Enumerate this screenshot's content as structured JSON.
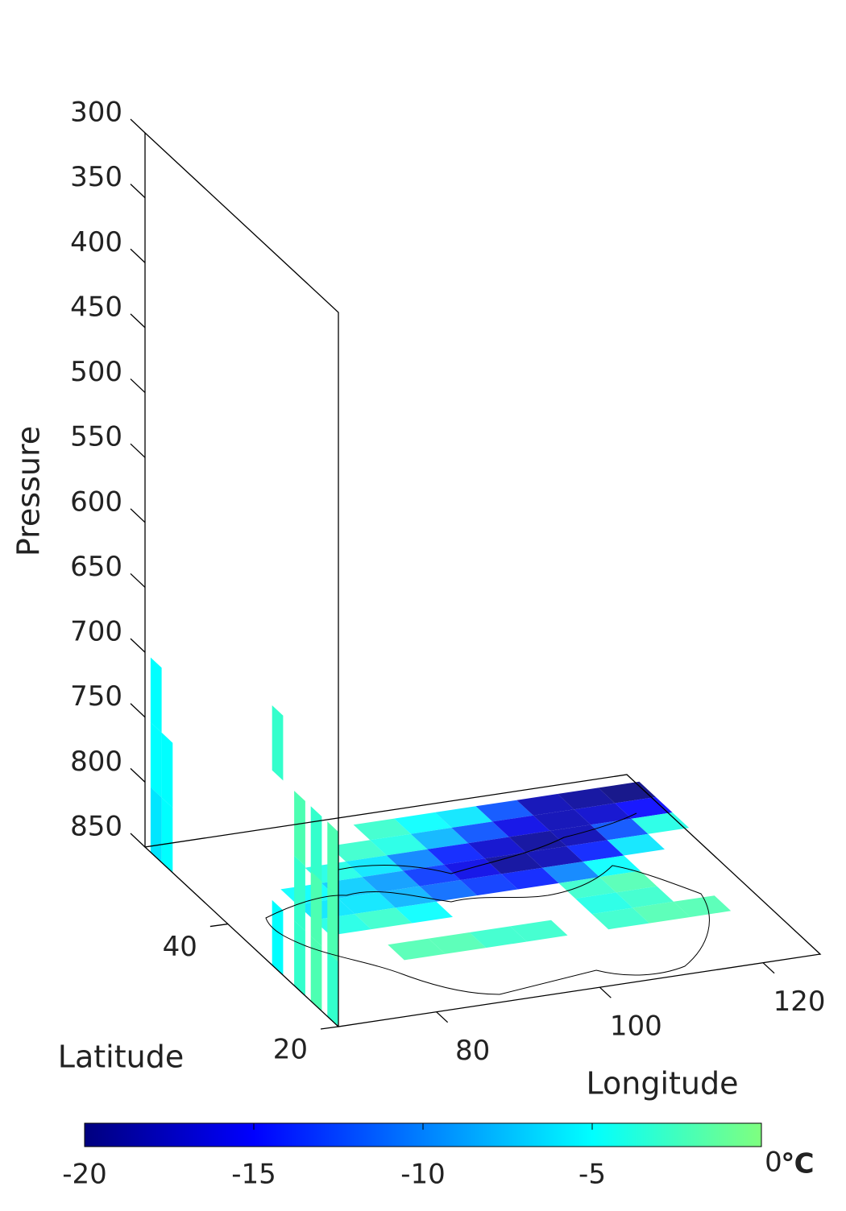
{
  "chart_data": {
    "type": "heatmap3d",
    "xlabel": "Longitude",
    "ylabel": "Latitude",
    "zlabel": "Pressure",
    "xlim": [
      68,
      127
    ],
    "ylim": [
      20,
      55
    ],
    "zlim": [
      300,
      850
    ],
    "zreverse": true,
    "xticks": [
      80,
      100,
      120
    ],
    "yticks": [
      20,
      40
    ],
    "zticks": [
      300,
      350,
      400,
      450,
      500,
      550,
      600,
      650,
      700,
      750,
      800,
      850
    ],
    "colormap": [
      "#00007f",
      "#0000ff",
      "#0080ff",
      "#00ffff",
      "#7fff7f"
    ],
    "clim": [
      -20,
      0
    ],
    "cticks": [
      -20,
      -15,
      -10,
      -5,
      0
    ],
    "clabel": "℃",
    "surface": {
      "x": [
        80,
        85,
        90,
        95,
        100,
        105,
        110,
        115,
        120,
        125
      ],
      "y": [
        52,
        49,
        46,
        43,
        40,
        37,
        34,
        31
      ],
      "values": [
        [
          null,
          null,
          null,
          -3,
          -5,
          -6,
          -12,
          -18,
          -19,
          -20
        ],
        [
          null,
          null,
          -3,
          -4,
          -8,
          -12,
          -16,
          -18,
          -17,
          -15
        ],
        [
          null,
          -4,
          -6,
          -10,
          -14,
          -17,
          -19,
          -18,
          -12,
          -4
        ],
        [
          -5,
          -7,
          -9,
          -13,
          -16,
          -19,
          -18,
          -14,
          -6,
          null
        ],
        [
          -6,
          -6,
          -8,
          -11,
          -13,
          -14,
          -10,
          -5,
          null,
          null
        ],
        [
          -4,
          -3,
          -5,
          null,
          null,
          null,
          -3,
          -2,
          null,
          null
        ],
        [
          null,
          null,
          null,
          null,
          null,
          null,
          -4,
          -3,
          null,
          null
        ],
        [
          null,
          -2,
          -2,
          -3,
          -3,
          null,
          -3,
          -2,
          -2,
          null
        ]
      ]
    },
    "curtain": {
      "y": [
        53,
        51,
        31,
        27,
        24,
        21
      ],
      "z": [
        675,
        725,
        775,
        825
      ],
      "values": [
        [
          null,
          null,
          -3,
          null,
          null,
          null
        ],
        [
          -5,
          null,
          null,
          -2,
          -3,
          -2
        ],
        [
          -5,
          -5,
          null,
          -3,
          -2,
          -2
        ],
        [
          -6,
          -5,
          -5,
          -3,
          -2,
          -3
        ]
      ]
    }
  }
}
